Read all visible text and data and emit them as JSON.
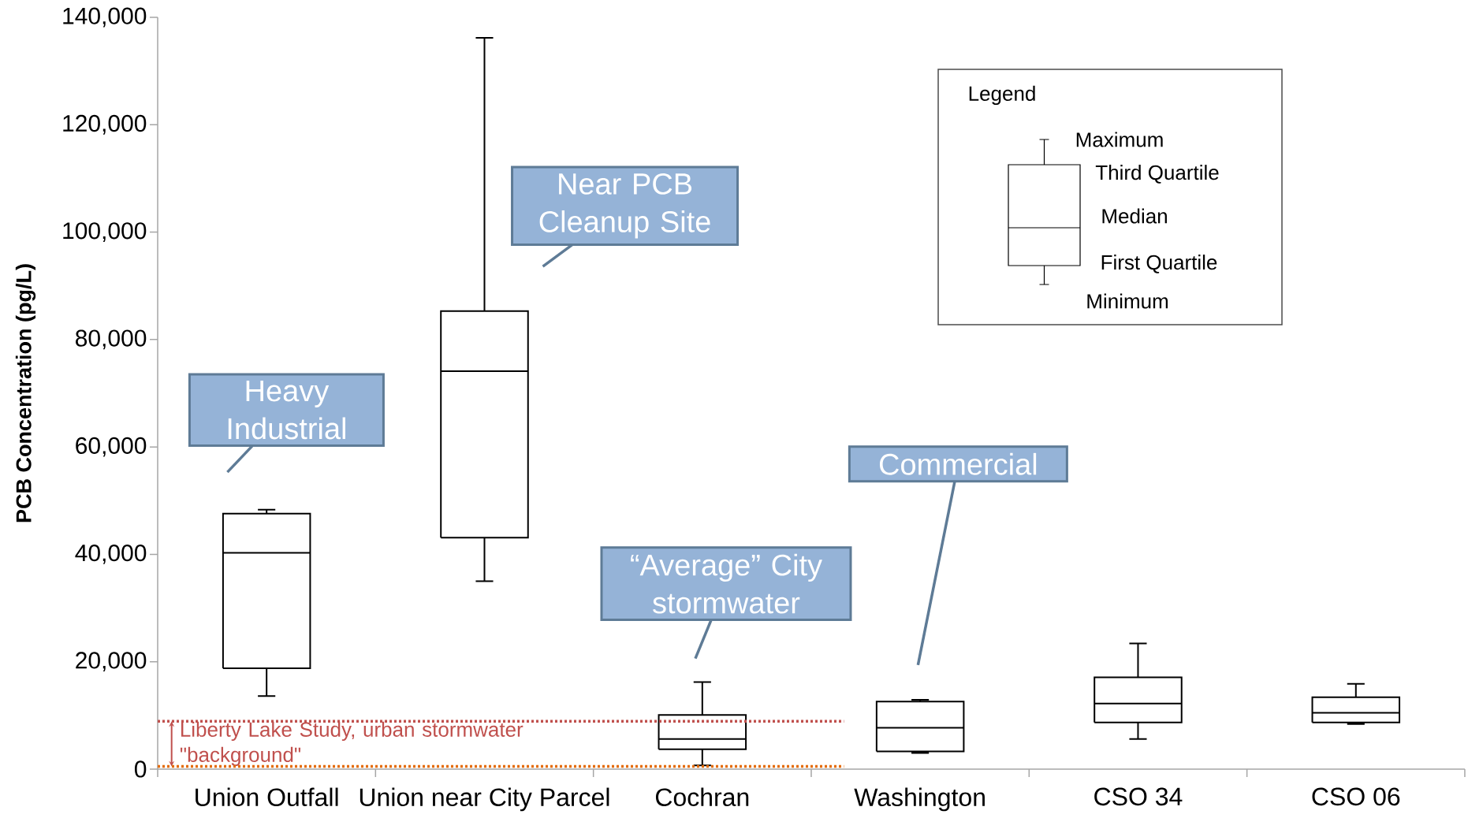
{
  "chart_data": {
    "type": "box",
    "ylabel": "PCB Concentration (pg/L)",
    "categories": [
      "Union Outfall",
      "Union near City Parcel",
      "Cochran",
      "Washington",
      "CSO 34",
      "CSO 06"
    ],
    "boxes": [
      {
        "low": 13600,
        "q1": 18800,
        "median": 40300,
        "q3": 47600,
        "high": 48300
      },
      {
        "low": 35000,
        "q1": 43100,
        "median": 74100,
        "q3": 85300,
        "high": 136200
      },
      {
        "low": 700,
        "q1": 3700,
        "median": 5600,
        "q3": 10100,
        "high": 16200
      },
      {
        "low": 3000,
        "q1": 3300,
        "median": 7700,
        "q3": 12600,
        "high": 12900
      },
      {
        "low": 5600,
        "q1": 8700,
        "median": 12200,
        "q3": 17100,
        "high": 23400
      },
      {
        "low": 8400,
        "q1": 8700,
        "median": 10500,
        "q3": 13400,
        "high": 15900
      }
    ],
    "color": "#000000",
    "ylim": [
      0,
      140000
    ],
    "yticks": [
      {
        "value": 0,
        "label": "0"
      },
      {
        "value": 20000,
        "label": "20,000"
      },
      {
        "value": 40000,
        "label": "40,000"
      },
      {
        "value": 60000,
        "label": "60,000"
      },
      {
        "value": 80000,
        "label": "80,000"
      },
      {
        "value": 100000,
        "label": "100,000"
      },
      {
        "value": 120000,
        "label": "120,000"
      },
      {
        "value": 140000,
        "label": "140,000"
      }
    ],
    "ref_lines": [
      {
        "axis": "y",
        "value": 8900,
        "label": "Liberty Lake Study, urban stormwater \"background\"",
        "color": "#c0504d",
        "line_style": "dotted"
      },
      {
        "axis": "y",
        "value": 500,
        "color": "#e46c0a",
        "line_style": "dotted"
      }
    ],
    "annotations": [
      "Heavy Industrial",
      "Near PCB Cleanup Site",
      "“Average” City stormwater",
      "Commercial",
      "Legend",
      "Maximum",
      "Third Quartile",
      "Median",
      "First Quartile",
      "Minimum"
    ],
    "grid": false
  }
}
